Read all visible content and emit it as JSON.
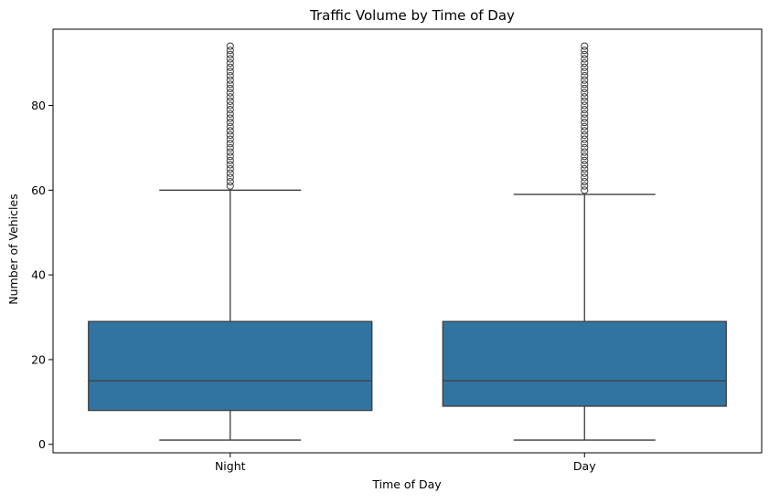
{
  "chart_data": {
    "type": "box",
    "title": "Traffic Volume by Time of Day",
    "xlabel": "Time of Day",
    "ylabel": "Number of Vehicles",
    "ylim": [
      -2,
      98
    ],
    "yticks": [
      0,
      20,
      40,
      60,
      80
    ],
    "grid": false,
    "categories": [
      "Night",
      "Day"
    ],
    "box_color": "#3274a1",
    "line_color": "#3d3d3d",
    "boxes": [
      {
        "category": "Night",
        "whisker_low": 1,
        "q1": 8,
        "median": 15,
        "q3": 29,
        "whisker_high": 60,
        "outliers": [
          61,
          62,
          63,
          64,
          65,
          66,
          67,
          68,
          69,
          70,
          71,
          72,
          73,
          74,
          75,
          76,
          77,
          78,
          79,
          80,
          81,
          82,
          83,
          84,
          85,
          86,
          87,
          88,
          89,
          90,
          91,
          92,
          93,
          94
        ]
      },
      {
        "category": "Day",
        "whisker_low": 1,
        "q1": 9,
        "median": 15,
        "q3": 29,
        "whisker_high": 59,
        "outliers": [
          60,
          61,
          62,
          63,
          64,
          65,
          66,
          67,
          68,
          69,
          70,
          71,
          72,
          73,
          74,
          75,
          76,
          77,
          78,
          79,
          80,
          81,
          82,
          83,
          84,
          85,
          86,
          87,
          88,
          89,
          90,
          91,
          92,
          93,
          94
        ]
      }
    ]
  }
}
